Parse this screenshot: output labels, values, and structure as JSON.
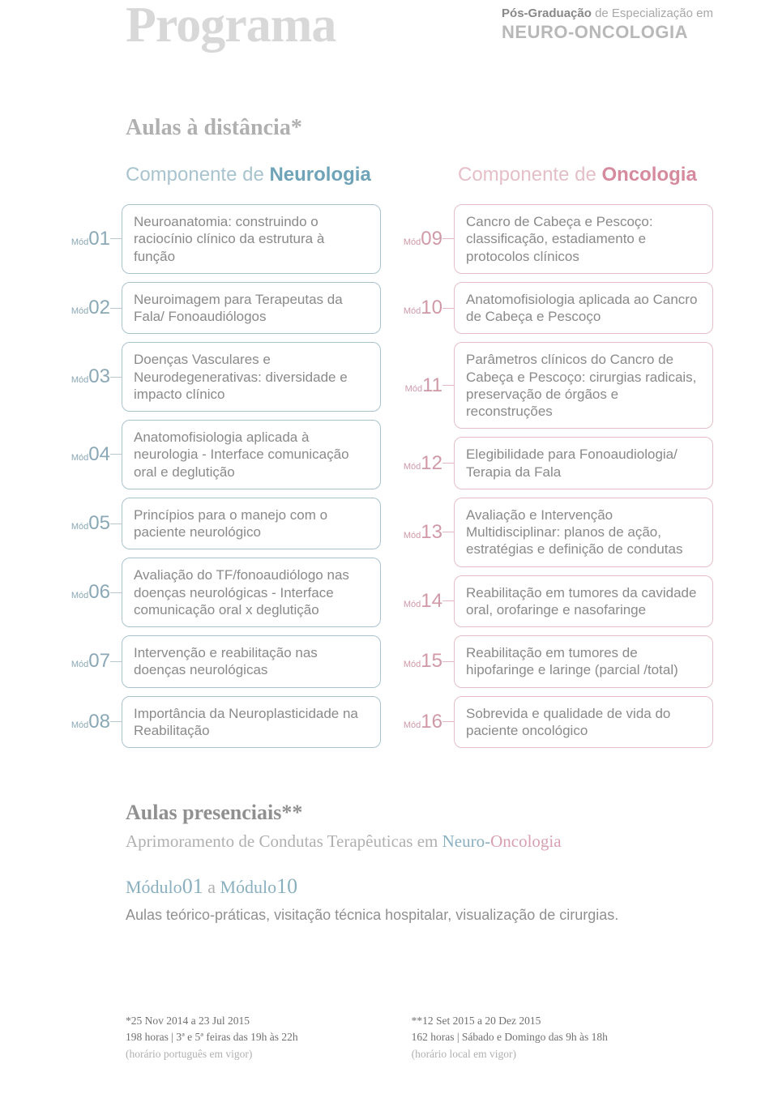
{
  "header": {
    "title": "Programa",
    "subtitle_prefix_bold": "Pós-Graduação",
    "subtitle_prefix_rest": " de Especialização em",
    "subtitle_main": "NEURO-ONCOLOGIA"
  },
  "distance_title": "Aulas à distância*",
  "neurologia": {
    "heading_prefix": "Componente de ",
    "heading_strong": "Neurologia",
    "modules": [
      {
        "num": "01",
        "text": "Neuroanatomia: construindo o raciocínio clínico da estrutura à função"
      },
      {
        "num": "02",
        "text": "Neuroimagem para Terapeutas da Fala/ Fonoaudiólogos"
      },
      {
        "num": "03",
        "text": "Doenças Vasculares e Neurodegenerativas: diversidade e impacto clínico"
      },
      {
        "num": "04",
        "text": "Anatomofisiologia aplicada à neurologia - Interface comunicação oral e deglutição"
      },
      {
        "num": "05",
        "text": "Princípios para o manejo com o paciente neurológico"
      },
      {
        "num": "06",
        "text": "Avaliação do TF/fonoaudiólogo nas doenças neurológicas - Interface comunicação oral x deglutição"
      },
      {
        "num": "07",
        "text": "Intervenção e reabilitação nas doenças neurológicas"
      },
      {
        "num": "08",
        "text": "Importância da Neuroplasticidade na Reabilitação"
      }
    ]
  },
  "oncologia": {
    "heading_prefix": "Componente de ",
    "heading_strong": "Oncologia",
    "modules": [
      {
        "num": "09",
        "text": "Cancro de Cabeça e Pescoço: classificação, estadiamento e protocolos clínicos"
      },
      {
        "num": "10",
        "text": "Anatomofisiologia aplicada ao Cancro de Cabeça e Pescoço"
      },
      {
        "num": "11",
        "text": "Parâmetros clínicos do Cancro de Cabeça e Pescoço: cirurgias radicais, preservação de órgãos e reconstruções"
      },
      {
        "num": "12",
        "text": "Elegibilidade para Fonoaudiologia/ Terapia da Fala"
      },
      {
        "num": "13",
        "text": "Avaliação e Intervenção Multidisciplinar: planos de ação, estratégias e definição de condutas"
      },
      {
        "num": "14",
        "text": "Reabilitação em tumores da cavidade oral, orofaringe e nasofaringe"
      },
      {
        "num": "15",
        "text": "Reabilitação em tumores de hipofaringe e laringe (parcial /total)"
      },
      {
        "num": "16",
        "text": "Sobrevida e qualidade de vida do paciente oncológico"
      }
    ]
  },
  "presenciais": {
    "title": "Aulas presenciais**",
    "subtitle_prefix": "Aprimoramento de Condutas Terapêuticas em ",
    "subtitle_neuro": "Neuro",
    "subtitle_dash": "-",
    "subtitle_onc": "Oncologia",
    "range_mod1_label": "Módulo",
    "range_mod1_num": "01",
    "range_mid": " a ",
    "range_mod2_label": "Módulo",
    "range_mod2_num": "10",
    "description": "Aulas teórico-práticas, visitação técnica hospitalar, visualização de cirurgias."
  },
  "footer": {
    "left": {
      "line1": "*25 Nov 2014 a 23 Jul 2015",
      "line2": "198 horas | 3ª e 5ª feiras das 19h às 22h",
      "line3": "(horário português em vigor)"
    },
    "right": {
      "line1": "**12 Set 2015 a 20 Dez 2015",
      "line2": "162 horas | Sábado e Domingo das 9h às 18h",
      "line3": "(horário local em vigor)"
    }
  },
  "mod_prefix": "Mód",
  "colors": {
    "neuro_border": "#a9c4cf",
    "onc_border": "#e5bfc8",
    "title_grey": "#d8d8d8",
    "text_grey": "#8a8a8a"
  }
}
